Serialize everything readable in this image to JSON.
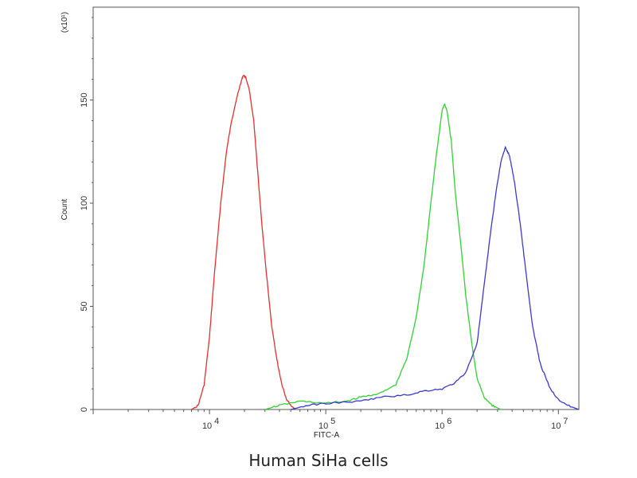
{
  "caption": "Human SiHa cells",
  "chart_data": {
    "type": "line",
    "xlabel": "FITC-A",
    "ylabel": "Count",
    "y_multiplier_label": "(x10¹)",
    "x_scale": "log",
    "xlim": [
      1000,
      15000000
    ],
    "ylim": [
      0,
      195
    ],
    "x_ticks": [
      10000,
      100000,
      1000000,
      10000000
    ],
    "x_tick_labels": [
      {
        "base": "10",
        "exp": "4"
      },
      {
        "base": "10",
        "exp": "5"
      },
      {
        "base": "10",
        "exp": "6"
      },
      {
        "base": "10",
        "exp": "7"
      }
    ],
    "y_ticks": [
      0,
      50,
      100,
      150
    ],
    "y_tick_labels": [
      "0",
      "50",
      "100",
      "150"
    ],
    "grid": false,
    "legend": "none",
    "series": [
      {
        "color": "#e03030",
        "points": [
          [
            7000,
            0
          ],
          [
            8000,
            2
          ],
          [
            9000,
            12
          ],
          [
            10000,
            35
          ],
          [
            11000,
            65
          ],
          [
            12500,
            100
          ],
          [
            14000,
            125
          ],
          [
            15500,
            140
          ],
          [
            17000,
            150
          ],
          [
            18500,
            158
          ],
          [
            19500,
            162
          ],
          [
            20500,
            161
          ],
          [
            22000,
            155
          ],
          [
            24000,
            140
          ],
          [
            26000,
            115
          ],
          [
            28000,
            92
          ],
          [
            31000,
            65
          ],
          [
            34000,
            42
          ],
          [
            38000,
            24
          ],
          [
            42000,
            12
          ],
          [
            46000,
            5
          ],
          [
            50000,
            2
          ],
          [
            55000,
            0
          ]
        ]
      },
      {
        "color": "#30d030",
        "points": [
          [
            30000,
            0
          ],
          [
            40000,
            2
          ],
          [
            60000,
            4
          ],
          [
            100000,
            3
          ],
          [
            150000,
            4
          ],
          [
            200000,
            6
          ],
          [
            300000,
            8
          ],
          [
            400000,
            12
          ],
          [
            500000,
            25
          ],
          [
            600000,
            45
          ],
          [
            700000,
            70
          ],
          [
            800000,
            100
          ],
          [
            900000,
            125
          ],
          [
            1000000,
            145
          ],
          [
            1050000,
            148
          ],
          [
            1100000,
            145
          ],
          [
            1200000,
            130
          ],
          [
            1300000,
            105
          ],
          [
            1450000,
            80
          ],
          [
            1600000,
            55
          ],
          [
            1800000,
            32
          ],
          [
            2000000,
            15
          ],
          [
            2300000,
            6
          ],
          [
            2700000,
            2
          ],
          [
            3200000,
            0
          ]
        ]
      },
      {
        "color": "#3a3acc",
        "points": [
          [
            50000,
            0
          ],
          [
            70000,
            2
          ],
          [
            100000,
            3
          ],
          [
            200000,
            4
          ],
          [
            300000,
            6
          ],
          [
            500000,
            7
          ],
          [
            700000,
            9
          ],
          [
            1000000,
            10
          ],
          [
            1300000,
            13
          ],
          [
            1600000,
            18
          ],
          [
            2000000,
            32
          ],
          [
            2300000,
            60
          ],
          [
            2600000,
            85
          ],
          [
            2900000,
            105
          ],
          [
            3200000,
            120
          ],
          [
            3500000,
            127
          ],
          [
            3800000,
            123
          ],
          [
            4200000,
            110
          ],
          [
            4700000,
            90
          ],
          [
            5300000,
            65
          ],
          [
            6000000,
            40
          ],
          [
            7000000,
            22
          ],
          [
            8500000,
            10
          ],
          [
            10000000,
            5
          ],
          [
            12000000,
            2
          ],
          [
            15000000,
            0
          ]
        ]
      }
    ]
  }
}
